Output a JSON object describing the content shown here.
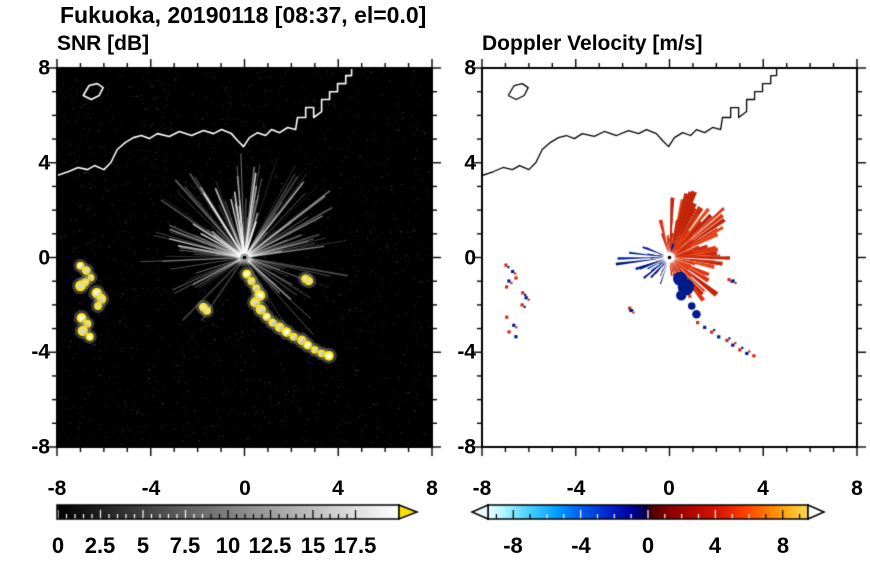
{
  "header": {
    "title": "Fukuoka, 20190118 [08:37, el=0.0]"
  },
  "panels": {
    "snr": {
      "title": "SNR [dB]",
      "xticks": [
        "-8",
        "-4",
        "0",
        "4",
        "8"
      ],
      "yticks": [
        "8",
        "4",
        "0",
        "-4",
        "-8"
      ]
    },
    "doppler": {
      "title": "Doppler Velocity [m/s]",
      "xticks": [
        "-8",
        "-4",
        "0",
        "4",
        "8"
      ],
      "yticks": [
        "8",
        "4",
        "0",
        "-4",
        "-8"
      ]
    }
  },
  "colorbars": {
    "snr": {
      "labels": [
        "0",
        "2.5",
        "5",
        "7.5",
        "10",
        "12.5",
        "15",
        "17.5"
      ],
      "range": [
        0,
        17.5
      ],
      "gradient_stops": [
        [
          0,
          "#000000"
        ],
        [
          1,
          "#ffffff"
        ]
      ],
      "arrow_color": "#ffdf00"
    },
    "doppler": {
      "labels": [
        "-8",
        "-4",
        "0",
        "4",
        "8"
      ],
      "range": [
        -9.5,
        9.5
      ],
      "gradient_stops": [
        [
          0,
          "#eaffff"
        ],
        [
          0.05,
          "#aef4ff"
        ],
        [
          0.13,
          "#45d0ff"
        ],
        [
          0.22,
          "#0099ff"
        ],
        [
          0.3,
          "#0055ee"
        ],
        [
          0.38,
          "#0022cc"
        ],
        [
          0.45,
          "#000099"
        ],
        [
          0.49,
          "#000050"
        ],
        [
          0.51,
          "#4c0000"
        ],
        [
          0.57,
          "#8b0000"
        ],
        [
          0.65,
          "#bb0800"
        ],
        [
          0.73,
          "#e01800"
        ],
        [
          0.81,
          "#ff4400"
        ],
        [
          0.89,
          "#ff8800"
        ],
        [
          0.95,
          "#ffbb22"
        ],
        [
          1,
          "#ffd84d"
        ]
      ],
      "arrow_left_color": "#effcff",
      "arrow_right_color": "#ffffff"
    }
  },
  "chart_data": [
    {
      "type": "heatmap",
      "panel": "snr",
      "title": "SNR [dB]",
      "units": "dB",
      "xlim": [
        -8,
        8
      ],
      "ylim": [
        -8,
        8
      ],
      "xticks": [
        -8,
        -4,
        0,
        4,
        8
      ],
      "yticks": [
        -8,
        -4,
        0,
        4,
        8
      ],
      "minor_tick_step": 1,
      "background_color": "#000000",
      "radar_center": [
        0,
        0
      ],
      "colorbar": {
        "range": [
          0,
          17.5
        ],
        "ticks": [
          0,
          2.5,
          5,
          7.5,
          10,
          12.5,
          15,
          17.5
        ],
        "colormap": "grayscale black to white",
        "over_color": "#ffdf00"
      },
      "ray_angular_ranges_deg": [
        [
          60,
          175
        ],
        [
          8,
          60
        ],
        [
          176,
          240
        ],
        [
          295,
          350
        ]
      ],
      "ray_weights": [
        0.45,
        0.25,
        0.15,
        0.15
      ],
      "echo_color": "#ffe800",
      "echo_chains": {
        "west_arc_1": [
          [
            -7.0,
            -0.35
          ],
          [
            -6.75,
            -0.55
          ],
          [
            -6.55,
            -0.85
          ],
          [
            -6.8,
            -1.05
          ],
          [
            -7.0,
            -1.2
          ]
        ],
        "west_arc_2": [
          [
            -6.3,
            -1.5
          ],
          [
            -6.1,
            -1.75
          ],
          [
            -6.25,
            -2.05
          ]
        ],
        "west_arc_3": [
          [
            -6.95,
            -2.55
          ],
          [
            -6.7,
            -2.8
          ],
          [
            -6.9,
            -3.1
          ],
          [
            -6.6,
            -3.35
          ]
        ],
        "small_dash": [
          [
            -1.75,
            -2.1
          ],
          [
            -1.6,
            -2.25
          ]
        ],
        "east_dash": [
          [
            2.6,
            -0.9
          ],
          [
            2.75,
            -1.0
          ]
        ],
        "center_chain": [
          [
            0.1,
            -0.7
          ],
          [
            0.3,
            -1.0
          ],
          [
            0.5,
            -1.3
          ],
          [
            0.65,
            -1.6
          ],
          [
            0.45,
            -1.9
          ],
          [
            0.7,
            -2.2
          ],
          [
            0.95,
            -2.5
          ],
          [
            1.2,
            -2.75
          ],
          [
            1.5,
            -2.95
          ],
          [
            1.8,
            -3.15
          ],
          [
            2.1,
            -3.35
          ],
          [
            2.45,
            -3.5
          ],
          [
            2.7,
            -3.7
          ],
          [
            3.0,
            -3.9
          ],
          [
            3.3,
            -4.05
          ],
          [
            3.6,
            -4.15
          ]
        ]
      },
      "coastline": [
        [
          -8.0,
          3.46
        ],
        [
          -7.5,
          3.63
        ],
        [
          -7.1,
          3.8
        ],
        [
          -6.7,
          3.71
        ],
        [
          -6.4,
          3.88
        ],
        [
          -6.0,
          3.71
        ],
        [
          -5.7,
          4.01
        ],
        [
          -5.43,
          4.56
        ],
        [
          -5.09,
          4.85
        ],
        [
          -4.74,
          5.06
        ],
        [
          -4.4,
          5.15
        ],
        [
          -4.06,
          5.02
        ],
        [
          -3.72,
          5.23
        ],
        [
          -3.21,
          5.11
        ],
        [
          -2.78,
          5.32
        ],
        [
          -2.26,
          5.15
        ],
        [
          -1.75,
          5.36
        ],
        [
          -1.32,
          5.23
        ],
        [
          -0.98,
          5.4
        ],
        [
          -0.56,
          5.23
        ],
        [
          -0.3,
          4.94
        ],
        [
          -0.04,
          4.68
        ],
        [
          0.21,
          5.06
        ],
        [
          0.56,
          5.27
        ],
        [
          0.9,
          5.15
        ],
        [
          1.15,
          5.4
        ],
        [
          1.5,
          5.27
        ],
        [
          1.84,
          5.49
        ],
        [
          2.18,
          5.4
        ],
        [
          2.26,
          5.91
        ],
        [
          2.61,
          5.91
        ],
        [
          2.61,
          6.33
        ],
        [
          2.95,
          6.33
        ],
        [
          2.95,
          5.91
        ],
        [
          3.29,
          6.16
        ],
        [
          3.29,
          6.67
        ],
        [
          3.63,
          6.67
        ],
        [
          3.63,
          7.0
        ],
        [
          3.97,
          7.0
        ],
        [
          3.97,
          7.34
        ],
        [
          4.32,
          7.34
        ],
        [
          4.32,
          7.68
        ],
        [
          4.57,
          7.68
        ],
        [
          4.57,
          8.1
        ]
      ],
      "island": [
        [
          -6.88,
          6.84
        ],
        [
          -6.63,
          7.26
        ],
        [
          -6.28,
          7.34
        ],
        [
          -6.03,
          7.17
        ],
        [
          -6.2,
          6.84
        ],
        [
          -6.54,
          6.67
        ],
        [
          -6.88,
          6.84
        ]
      ]
    },
    {
      "type": "heatmap",
      "panel": "doppler",
      "title": "Doppler Velocity [m/s]",
      "units": "m/s",
      "xlim": [
        -8,
        8
      ],
      "ylim": [
        -8,
        8
      ],
      "xticks": [
        -8,
        -4,
        0,
        4,
        8
      ],
      "yticks": [
        -8,
        -4,
        0,
        4,
        8
      ],
      "minor_tick_step": 1,
      "background_color": "#ffffff",
      "radar_center": [
        0,
        0
      ],
      "colorbar": {
        "range": [
          -9.5,
          9.5
        ],
        "ticks": [
          -8,
          -4,
          0,
          4,
          8
        ],
        "colormap": "cyan-blue-navy to darkred-red-orange-yellow"
      },
      "positive_color": "#d42a10",
      "negative_color": "#001a8c",
      "positive_fan_deg": [
        -85,
        108
      ],
      "negative_fan_deg": [
        148,
        252
      ],
      "west_streak_angles_deg": [
        172,
        180,
        187
      ],
      "negative_blob": [
        [
          0.45,
          -0.9,
          0.3
        ],
        [
          0.7,
          -1.25,
          0.35
        ],
        [
          0.5,
          -1.6,
          0.22
        ],
        [
          0.95,
          -2.05,
          0.16
        ],
        [
          1.15,
          -2.4,
          0.18
        ]
      ]
    }
  ]
}
